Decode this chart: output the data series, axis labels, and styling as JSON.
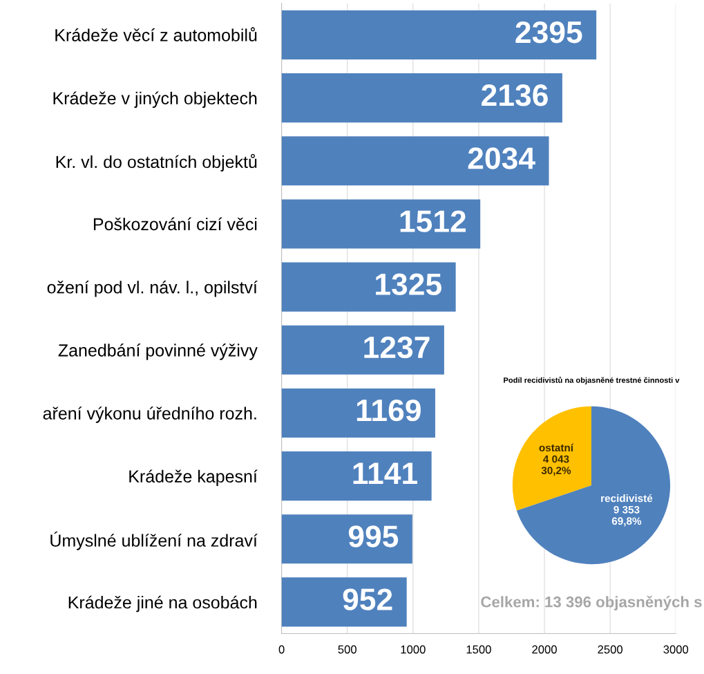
{
  "chart_data": [
    {
      "type": "bar",
      "orientation": "horizontal",
      "categories": [
        "Krádeže věcí z automobilů",
        "Krádeže v jiných objektech",
        "Kr. vl. do ostatních objektů",
        "Poškozování cizí věci",
        "ožení pod vl. náv. l., opilství",
        "Zanedbání povinné výživy",
        "aření výkonu úředního rozh.",
        "Krádeže kapesní",
        "Úmyslné ublížení na zdraví",
        "Krádeže jiné na osobách"
      ],
      "values": [
        2395,
        2136,
        2034,
        1512,
        1325,
        1237,
        1169,
        1141,
        995,
        952
      ],
      "color": "#4f81bd",
      "data_labels": true,
      "xlim": [
        0,
        3000
      ],
      "xticks": [
        0,
        500,
        1000,
        1500,
        2000,
        2500,
        3000
      ],
      "grid": "x"
    },
    {
      "type": "pie",
      "title": "Podíl recidivistů na objasněné trestné činnosti v",
      "categories": [
        "recidivisté",
        "ostatní"
      ],
      "values": [
        9353,
        4043
      ],
      "value_labels": [
        "9 353\n69,8%",
        "4 043\n30,2%"
      ],
      "colors": [
        "#4f81bd",
        "#ffc000"
      ],
      "annotations": [
        "Celkem: 13 396 objasněných s"
      ]
    }
  ]
}
